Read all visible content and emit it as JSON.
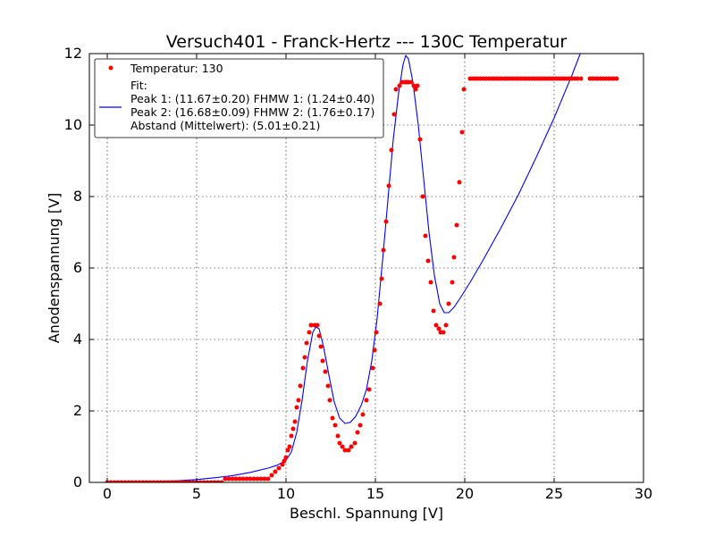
{
  "chart_data": {
    "type": "scatter",
    "title": "Versuch401 - Franck-Hertz --- 130C Temperatur",
    "xlabel": "Beschl. Spannung [V]",
    "ylabel": "Anodenspannung [V]",
    "xlim": [
      -1,
      30
    ],
    "ylim": [
      0,
      12
    ],
    "xticks": [
      0,
      5,
      10,
      15,
      20,
      25,
      30
    ],
    "yticks": [
      0,
      2,
      4,
      6,
      8,
      10,
      12
    ],
    "xtick_labels": [
      "0",
      "5",
      "10",
      "15",
      "20",
      "25",
      "30"
    ],
    "ytick_labels": [
      "0",
      "2",
      "4",
      "6",
      "8",
      "10",
      "12"
    ],
    "grid": true,
    "legend_position": "upper-left",
    "legend": {
      "data_label": "Temperatur: 130",
      "fit_lines": [
        "Fit:",
        "Peak 1: (11.67±0.20)  FHMW 1: (1.24±0.40)",
        "Peak 2: (16.68±0.09)  FHMW 2: (1.76±0.17)",
        "Abstand (Mittelwert): (5.01±0.21)"
      ]
    },
    "series": [
      {
        "name": "Temperatur: 130",
        "kind": "scatter",
        "color": "#ff0000",
        "points": [
          [
            0.0,
            0.0
          ],
          [
            0.2,
            0.0
          ],
          [
            0.4,
            0.0
          ],
          [
            0.6,
            0.0
          ],
          [
            0.8,
            0.0
          ],
          [
            1.0,
            0.0
          ],
          [
            1.2,
            0.0
          ],
          [
            1.4,
            0.0
          ],
          [
            1.6,
            0.0
          ],
          [
            1.8,
            0.0
          ],
          [
            2.0,
            0.0
          ],
          [
            2.2,
            0.0
          ],
          [
            2.4,
            0.0
          ],
          [
            2.6,
            0.0
          ],
          [
            2.8,
            0.0
          ],
          [
            3.0,
            0.0
          ],
          [
            3.2,
            0.0
          ],
          [
            3.4,
            0.0
          ],
          [
            3.6,
            0.0
          ],
          [
            3.8,
            0.0
          ],
          [
            4.0,
            0.0
          ],
          [
            4.2,
            0.0
          ],
          [
            4.4,
            0.0
          ],
          [
            4.6,
            0.0
          ],
          [
            4.8,
            0.0
          ],
          [
            5.0,
            0.0
          ],
          [
            5.2,
            0.0
          ],
          [
            5.4,
            0.0
          ],
          [
            5.6,
            0.0
          ],
          [
            5.8,
            0.0
          ],
          [
            6.0,
            0.0
          ],
          [
            6.2,
            0.0
          ],
          [
            6.4,
            0.0
          ],
          [
            6.6,
            0.1
          ],
          [
            6.8,
            0.1
          ],
          [
            7.0,
            0.1
          ],
          [
            7.2,
            0.1
          ],
          [
            7.4,
            0.1
          ],
          [
            7.6,
            0.1
          ],
          [
            7.8,
            0.1
          ],
          [
            8.0,
            0.1
          ],
          [
            8.2,
            0.1
          ],
          [
            8.4,
            0.1
          ],
          [
            8.6,
            0.1
          ],
          [
            8.8,
            0.1
          ],
          [
            9.0,
            0.1
          ],
          [
            9.2,
            0.2
          ],
          [
            9.4,
            0.3
          ],
          [
            9.6,
            0.4
          ],
          [
            9.8,
            0.5
          ],
          [
            9.9,
            0.6
          ],
          [
            10.0,
            0.7
          ],
          [
            10.1,
            0.9
          ],
          [
            10.2,
            1.0
          ],
          [
            10.3,
            1.3
          ],
          [
            10.4,
            1.5
          ],
          [
            10.5,
            1.7
          ],
          [
            10.6,
            2.1
          ],
          [
            10.7,
            2.3
          ],
          [
            10.8,
            2.7
          ],
          [
            10.95,
            3.2
          ],
          [
            11.05,
            3.5
          ],
          [
            11.15,
            3.9
          ],
          [
            11.3,
            4.2
          ],
          [
            11.4,
            4.4
          ],
          [
            11.6,
            4.4
          ],
          [
            11.75,
            4.4
          ],
          [
            11.85,
            4.1
          ],
          [
            11.95,
            3.8
          ],
          [
            12.05,
            3.4
          ],
          [
            12.2,
            3.1
          ],
          [
            12.35,
            2.7
          ],
          [
            12.45,
            2.3
          ],
          [
            12.6,
            1.8
          ],
          [
            12.75,
            1.6
          ],
          [
            12.9,
            1.3
          ],
          [
            13.0,
            1.1
          ],
          [
            13.15,
            1.0
          ],
          [
            13.3,
            0.9
          ],
          [
            13.5,
            0.9
          ],
          [
            13.65,
            1.0
          ],
          [
            13.85,
            1.1
          ],
          [
            14.0,
            1.4
          ],
          [
            14.15,
            1.6
          ],
          [
            14.3,
            1.9
          ],
          [
            14.5,
            2.3
          ],
          [
            14.65,
            2.6
          ],
          [
            14.85,
            3.2
          ],
          [
            14.95,
            3.7
          ],
          [
            15.05,
            4.2
          ],
          [
            15.25,
            5.0
          ],
          [
            15.35,
            5.7
          ],
          [
            15.45,
            6.5
          ],
          [
            15.6,
            7.3
          ],
          [
            15.75,
            8.3
          ],
          [
            15.9,
            9.3
          ],
          [
            16.05,
            10.3
          ],
          [
            16.15,
            11.0
          ],
          [
            16.35,
            11.1
          ],
          [
            16.5,
            11.2
          ],
          [
            16.65,
            11.2
          ],
          [
            16.75,
            11.2
          ],
          [
            16.85,
            11.2
          ],
          [
            17.0,
            11.2
          ],
          [
            17.15,
            11.1
          ],
          [
            17.25,
            11.0
          ],
          [
            17.35,
            11.1
          ],
          [
            17.5,
            9.6
          ],
          [
            17.65,
            8.0
          ],
          [
            17.8,
            6.9
          ],
          [
            17.95,
            6.2
          ],
          [
            18.1,
            5.6
          ],
          [
            18.25,
            4.8
          ],
          [
            18.4,
            4.4
          ],
          [
            18.55,
            4.3
          ],
          [
            18.65,
            4.2
          ],
          [
            18.8,
            4.2
          ],
          [
            18.95,
            4.4
          ],
          [
            19.1,
            5.0
          ],
          [
            19.3,
            5.6
          ],
          [
            19.4,
            6.3
          ],
          [
            19.55,
            7.2
          ],
          [
            19.7,
            8.4
          ],
          [
            19.85,
            9.8
          ],
          [
            19.95,
            11.0
          ],
          [
            20.3,
            11.3
          ],
          [
            20.45,
            11.3
          ],
          [
            20.6,
            11.3
          ],
          [
            20.75,
            11.3
          ],
          [
            20.9,
            11.3
          ],
          [
            21.05,
            11.3
          ],
          [
            21.2,
            11.3
          ],
          [
            21.35,
            11.3
          ],
          [
            21.5,
            11.3
          ],
          [
            21.65,
            11.3
          ],
          [
            21.8,
            11.3
          ],
          [
            21.95,
            11.3
          ],
          [
            22.1,
            11.3
          ],
          [
            22.25,
            11.3
          ],
          [
            22.4,
            11.3
          ],
          [
            22.55,
            11.3
          ],
          [
            22.7,
            11.3
          ],
          [
            22.85,
            11.3
          ],
          [
            23.0,
            11.3
          ],
          [
            23.15,
            11.3
          ],
          [
            23.3,
            11.3
          ],
          [
            23.45,
            11.3
          ],
          [
            23.6,
            11.3
          ],
          [
            23.75,
            11.3
          ],
          [
            23.9,
            11.3
          ],
          [
            24.05,
            11.3
          ],
          [
            24.2,
            11.3
          ],
          [
            24.35,
            11.3
          ],
          [
            24.5,
            11.3
          ],
          [
            24.65,
            11.3
          ],
          [
            24.8,
            11.3
          ],
          [
            24.95,
            11.3
          ],
          [
            25.1,
            11.3
          ],
          [
            25.25,
            11.3
          ],
          [
            25.4,
            11.3
          ],
          [
            25.55,
            11.3
          ],
          [
            25.7,
            11.3
          ],
          [
            25.85,
            11.3
          ],
          [
            26.0,
            11.3
          ],
          [
            26.15,
            11.3
          ],
          [
            26.3,
            11.3
          ],
          [
            26.5,
            11.3
          ],
          [
            27.0,
            11.3
          ],
          [
            27.15,
            11.3
          ],
          [
            27.3,
            11.3
          ],
          [
            27.45,
            11.3
          ],
          [
            27.6,
            11.3
          ],
          [
            27.75,
            11.3
          ],
          [
            27.9,
            11.3
          ],
          [
            28.05,
            11.3
          ],
          [
            28.2,
            11.3
          ],
          [
            28.35,
            11.3
          ],
          [
            28.5,
            11.3
          ]
        ]
      },
      {
        "name": "Fit",
        "kind": "line",
        "color": "#0000ff",
        "points": [
          [
            0.0,
            0.0
          ],
          [
            1.0,
            0.005
          ],
          [
            2.0,
            0.015
          ],
          [
            3.0,
            0.03
          ],
          [
            4.0,
            0.05
          ],
          [
            5.0,
            0.08
          ],
          [
            6.0,
            0.13
          ],
          [
            7.0,
            0.19
          ],
          [
            8.0,
            0.28
          ],
          [
            9.0,
            0.4
          ],
          [
            9.5,
            0.48
          ],
          [
            10.0,
            0.62
          ],
          [
            10.3,
            0.85
          ],
          [
            10.6,
            1.4
          ],
          [
            10.9,
            2.3
          ],
          [
            11.2,
            3.4
          ],
          [
            11.5,
            4.2
          ],
          [
            11.67,
            4.35
          ],
          [
            11.85,
            4.3
          ],
          [
            12.1,
            3.8
          ],
          [
            12.4,
            3.0
          ],
          [
            12.7,
            2.25
          ],
          [
            13.0,
            1.8
          ],
          [
            13.3,
            1.65
          ],
          [
            13.6,
            1.68
          ],
          [
            13.9,
            1.85
          ],
          [
            14.2,
            2.15
          ],
          [
            14.5,
            2.6
          ],
          [
            14.8,
            3.4
          ],
          [
            15.1,
            4.6
          ],
          [
            15.4,
            6.2
          ],
          [
            15.7,
            7.9
          ],
          [
            16.0,
            9.6
          ],
          [
            16.3,
            10.9
          ],
          [
            16.55,
            11.7
          ],
          [
            16.7,
            11.95
          ],
          [
            16.85,
            11.85
          ],
          [
            17.1,
            11.2
          ],
          [
            17.4,
            10.0
          ],
          [
            17.7,
            8.5
          ],
          [
            18.0,
            7.0
          ],
          [
            18.3,
            5.8
          ],
          [
            18.6,
            5.0
          ],
          [
            18.85,
            4.75
          ],
          [
            19.1,
            4.75
          ],
          [
            19.4,
            4.9
          ],
          [
            19.8,
            5.2
          ],
          [
            20.3,
            5.6
          ],
          [
            21.0,
            6.2
          ],
          [
            22.0,
            7.1
          ],
          [
            23.0,
            8.05
          ],
          [
            24.0,
            9.1
          ],
          [
            25.0,
            10.2
          ],
          [
            26.0,
            11.4
          ],
          [
            26.5,
            12.05
          ]
        ]
      }
    ]
  }
}
